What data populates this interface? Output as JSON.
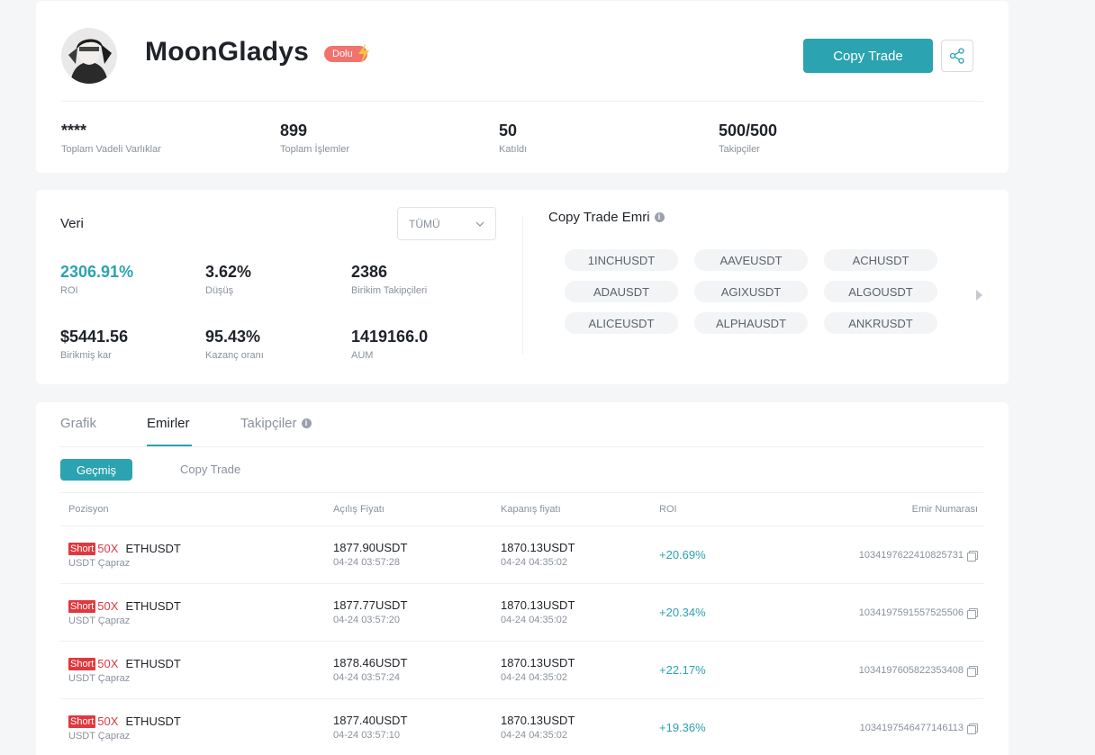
{
  "profile": {
    "nickname": "MoonGladys",
    "badge": "Dolu",
    "copy_trade_button": "Copy Trade",
    "stats": [
      {
        "value": "****",
        "label": "Toplam Vadeli Varlıklar"
      },
      {
        "value": "899",
        "label": "Toplam İşlemler"
      },
      {
        "value": "50",
        "label": "Katıldı"
      },
      {
        "value": "500/500",
        "label": "Takipçiler"
      }
    ]
  },
  "data_section": {
    "title": "Veri",
    "filter": {
      "selected": "TÜMÜ"
    },
    "stats": [
      {
        "value": "2306.91%",
        "label": "ROI"
      },
      {
        "value": "3.62%",
        "label": "Düşüş"
      },
      {
        "value": "2386",
        "label": "Birikim Takipçileri"
      },
      {
        "value": "$5441.56",
        "label": "Birikmiş kar"
      },
      {
        "value": "95.43%",
        "label": "Kazanç oranı"
      },
      {
        "value": "1419166.0",
        "label": "AUM"
      }
    ]
  },
  "copy_trade_orders": {
    "title": "Copy Trade Emri",
    "pairs": [
      "1INCHUSDT",
      "AAVEUSDT",
      "ACHUSDT",
      "ADAUSDT",
      "AGIXUSDT",
      "ALGOUSDT",
      "ALICEUSDT",
      "ALPHAUSDT",
      "ANKRUSDT"
    ]
  },
  "orders": {
    "tabs": [
      {
        "label": "Grafik"
      },
      {
        "label": "Emirler"
      },
      {
        "label": "Takipçiler"
      }
    ],
    "subtabs": [
      "Geçmiş",
      "Copy Trade"
    ],
    "columns": [
      "Pozisyon",
      "Açılış Fiyatı",
      "Kapanış fiyatı",
      "ROI",
      "Emir Numarası"
    ],
    "rows": [
      {
        "side": "Short",
        "leverage": "50X",
        "symbol": "ETHUSDT",
        "margin": "USDT Çapraz",
        "open_price": "1877.90USDT",
        "open_time": "04-24 03:57:28",
        "close_price": "1870.13USDT",
        "close_time": "04-24 04:35:02",
        "roi": "+20.69%",
        "order_id": "1034197622410825731"
      },
      {
        "side": "Short",
        "leverage": "50X",
        "symbol": "ETHUSDT",
        "margin": "USDT Çapraz",
        "open_price": "1877.77USDT",
        "open_time": "04-24 03:57:20",
        "close_price": "1870.13USDT",
        "close_time": "04-24 04:35:02",
        "roi": "+20.34%",
        "order_id": "1034197591557525506"
      },
      {
        "side": "Short",
        "leverage": "50X",
        "symbol": "ETHUSDT",
        "margin": "USDT Çapraz",
        "open_price": "1878.46USDT",
        "open_time": "04-24 03:57:24",
        "close_price": "1870.13USDT",
        "close_time": "04-24 04:35:02",
        "roi": "+22.17%",
        "order_id": "1034197605822353408"
      },
      {
        "side": "Short",
        "leverage": "50X",
        "symbol": "ETHUSDT",
        "margin": "USDT Çapraz",
        "open_price": "1877.40USDT",
        "open_time": "04-24 03:57:10",
        "close_price": "1870.13USDT",
        "close_time": "04-24 04:35:02",
        "roi": "+19.36%",
        "order_id": "1034197546477146113"
      }
    ]
  },
  "colors": {
    "accent": "#2ba3b0",
    "short": "#e0383e",
    "badge": "#f0736e"
  }
}
